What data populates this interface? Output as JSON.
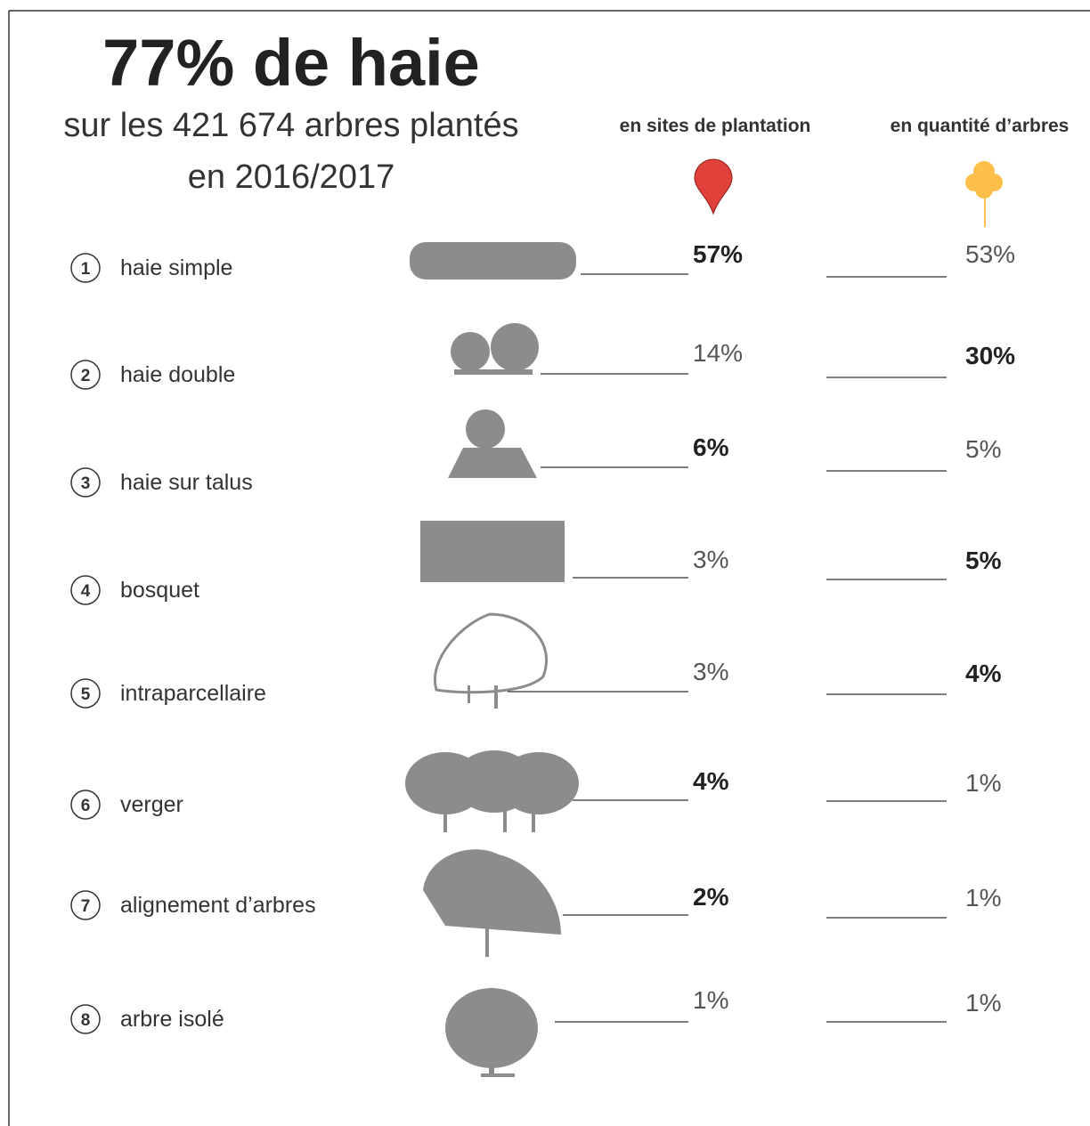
{
  "header": {
    "title": "77% de haie",
    "subtitle_line1": "sur les 421 674 arbres plantés",
    "subtitle_line2": "en 2016/2017"
  },
  "columns": {
    "sites": "en sites de plantation",
    "trees": "en quantité d’arbres"
  },
  "rows": [
    {
      "number": "1",
      "label": "haie simple",
      "sites": "57%",
      "trees": "53%"
    },
    {
      "number": "2",
      "label": "haie double",
      "sites": "14%",
      "trees": "30%"
    },
    {
      "number": "3",
      "label": "haie sur talus",
      "sites": "6%",
      "trees": "5%"
    },
    {
      "number": "4",
      "label": "bosquet",
      "sites": "3%",
      "trees": "5%"
    },
    {
      "number": "5",
      "label": "intraparcellaire",
      "sites": "3%",
      "trees": "4%"
    },
    {
      "number": "6",
      "label": "verger",
      "sites": "4%",
      "trees": "1%"
    },
    {
      "number": "7",
      "label": "alignement d’arbres",
      "sites": "2%",
      "trees": "1%"
    },
    {
      "number": "8",
      "label": "arbre isolé",
      "sites": "1%",
      "trees": "1%"
    }
  ]
}
